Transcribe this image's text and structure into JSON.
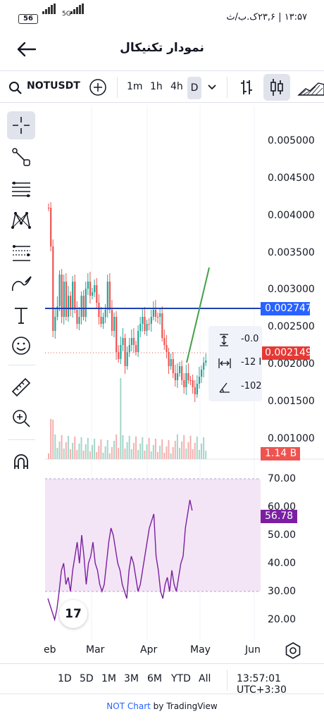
{
  "status_bar": {
    "battery": "56",
    "network": "5G",
    "time_text": "۱۳:۵۷ | ۲۳,۶ک.ب/ث"
  },
  "header": {
    "title": "نمودار تکنیکال"
  },
  "toolbar": {
    "symbol": "NOTUSDT",
    "timeframes": [
      "1m",
      "1h",
      "4h"
    ],
    "selected_timeframe": "D"
  },
  "chart": {
    "price_axis": [
      "0.005000",
      "0.004500",
      "0.004000",
      "0.003500",
      "0.003000",
      "0.002500",
      "0.002000",
      "0.001500",
      "0.001000"
    ],
    "level_badge": "0.002747",
    "price_badge": "0.002149",
    "volume_badge": "1.14 B",
    "measure_box": [
      "-0.0",
      "-12 I",
      "-102"
    ],
    "rsi_axis": [
      "70.00",
      "60.00",
      "50.00",
      "40.00",
      "30.00",
      "20.00"
    ],
    "rsi_badge": "56.78",
    "time_axis": [
      "eb",
      "Mar",
      "Apr",
      "May",
      "Jun"
    ],
    "logo_text": "17",
    "colors": {
      "up": "#26a69a",
      "down": "#ef5350",
      "level_line": "#1e40af",
      "projection": "#43a047",
      "rsi_line": "#7b1fa2",
      "rsi_band": "#f3e5f5",
      "level_badge": "#2962ff",
      "price_badge": "#e53935",
      "volume_badge": "#ef5350",
      "rsi_badge": "#7b1fa2"
    }
  },
  "range_bar": {
    "ranges": [
      "1D",
      "5D",
      "1M",
      "3M",
      "6M",
      "YTD",
      "All"
    ],
    "clock": "13:57:01 UTC+3:30"
  },
  "footer": {
    "brand": "NOT Chart",
    "by": " by TradingView"
  }
}
